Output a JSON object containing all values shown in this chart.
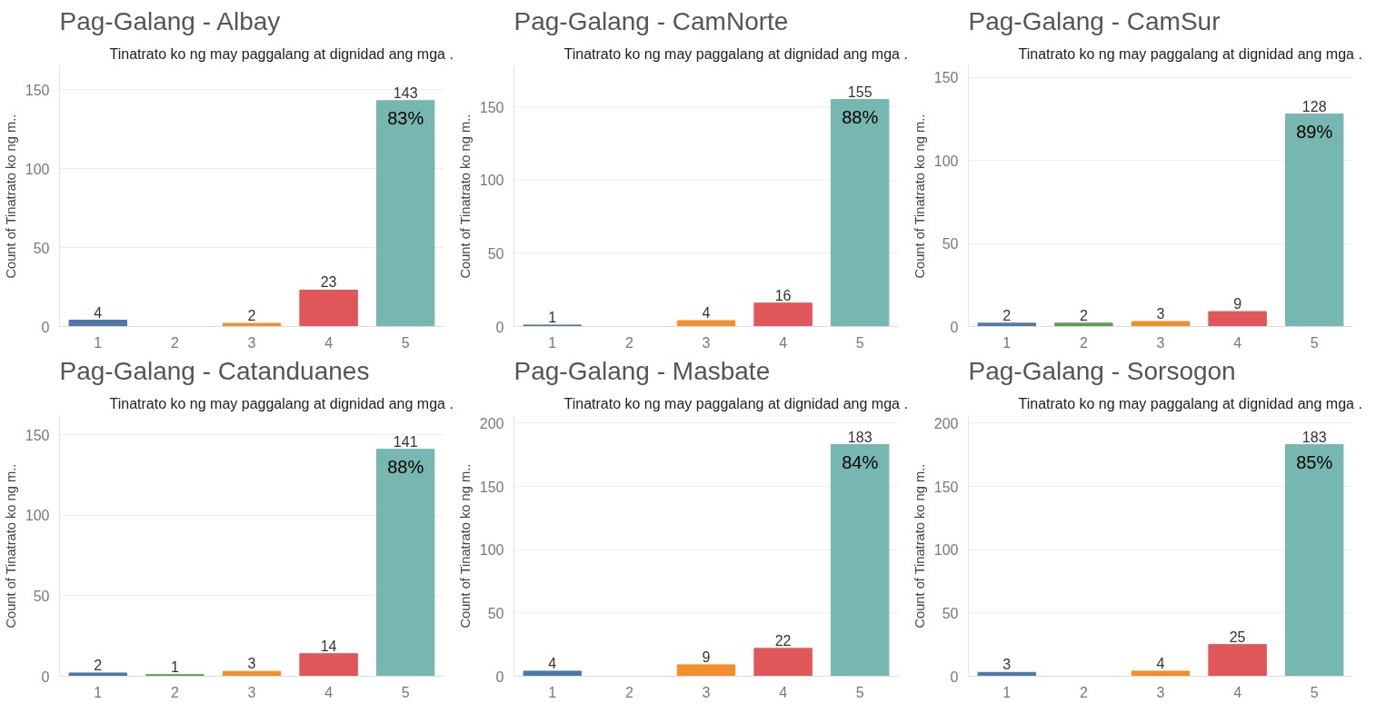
{
  "chart_data": [
    {
      "type": "bar",
      "title": "Pag-Galang - Albay",
      "subtitle": "Tinatrato ko ng may paggalang at dignidad ang mga ..",
      "ylabel": "Count of Tinatrato ko ng m..",
      "categories": [
        "1",
        "2",
        "3",
        "4",
        "5"
      ],
      "values": [
        4,
        null,
        2,
        23,
        143
      ],
      "colors": [
        "#4e79a7",
        "#59a14f",
        "#f28e2b",
        "#e15759",
        "#76b7b2"
      ],
      "ylim": [
        0,
        165
      ],
      "yticks": [
        0,
        50,
        100,
        150
      ],
      "grid": "y",
      "data_labels": true,
      "annotations": [
        {
          "text": "83%",
          "x": "5",
          "y": 143
        }
      ]
    },
    {
      "type": "bar",
      "title": "Pag-Galang - CamNorte",
      "subtitle": "Tinatrato ko ng may paggalang at dignidad ang mga ..",
      "ylabel": "Count of Tinatrato ko ng m..",
      "categories": [
        "1",
        "2",
        "3",
        "4",
        "5"
      ],
      "values": [
        1,
        null,
        4,
        16,
        155
      ],
      "colors": [
        "#4e79a7",
        "#59a14f",
        "#f28e2b",
        "#e15759",
        "#76b7b2"
      ],
      "ylim": [
        0,
        178
      ],
      "yticks": [
        0,
        50,
        100,
        150
      ],
      "grid": "y",
      "data_labels": true,
      "annotations": [
        {
          "text": "88%",
          "x": "5",
          "y": 155
        }
      ]
    },
    {
      "type": "bar",
      "title": "Pag-Galang - CamSur",
      "subtitle": "Tinatrato ko ng may paggalang at dignidad ang mga ..",
      "ylabel": "Count of Tinatrato ko ng m..",
      "categories": [
        "1",
        "2",
        "3",
        "4",
        "5"
      ],
      "values": [
        2,
        2,
        3,
        9,
        128
      ],
      "colors": [
        "#4e79a7",
        "#59a14f",
        "#f28e2b",
        "#e15759",
        "#76b7b2"
      ],
      "ylim": [
        0,
        157
      ],
      "yticks": [
        0,
        50,
        100,
        150
      ],
      "grid": "y",
      "data_labels": true,
      "annotations": [
        {
          "text": "89%",
          "x": "5",
          "y": 128
        }
      ]
    },
    {
      "type": "bar",
      "title": "Pag-Galang - Catanduanes",
      "subtitle": "Tinatrato ko ng may paggalang at dignidad ang mga ..",
      "ylabel": "Count of Tinatrato ko ng m..",
      "categories": [
        "1",
        "2",
        "3",
        "4",
        "5"
      ],
      "values": [
        2,
        1,
        3,
        14,
        141
      ],
      "colors": [
        "#4e79a7",
        "#59a14f",
        "#f28e2b",
        "#e15759",
        "#76b7b2"
      ],
      "ylim": [
        0,
        162
      ],
      "yticks": [
        0,
        50,
        100,
        150
      ],
      "grid": "y",
      "data_labels": true,
      "annotations": [
        {
          "text": "88%",
          "x": "5",
          "y": 141
        }
      ]
    },
    {
      "type": "bar",
      "title": "Pag-Galang - Masbate",
      "subtitle": "Tinatrato ko ng may paggalang at dignidad ang mga ..",
      "ylabel": "Count of Tinatrato ko ng m..",
      "categories": [
        "1",
        "2",
        "3",
        "4",
        "5"
      ],
      "values": [
        4,
        null,
        9,
        22,
        183
      ],
      "colors": [
        "#4e79a7",
        "#59a14f",
        "#f28e2b",
        "#e15759",
        "#76b7b2"
      ],
      "ylim": [
        0,
        206
      ],
      "yticks": [
        0,
        50,
        100,
        150,
        200
      ],
      "grid": "y",
      "data_labels": true,
      "annotations": [
        {
          "text": "84%",
          "x": "5",
          "y": 183
        }
      ]
    },
    {
      "type": "bar",
      "title": "Pag-Galang - Sorsogon",
      "subtitle": "Tinatrato ko ng may paggalang at dignidad ang mga ..",
      "ylabel": "Count of Tinatrato ko ng m..",
      "categories": [
        "1",
        "2",
        "3",
        "4",
        "5"
      ],
      "values": [
        3,
        null,
        4,
        25,
        183
      ],
      "colors": [
        "#4e79a7",
        "#59a14f",
        "#f28e2b",
        "#e15759",
        "#76b7b2"
      ],
      "ylim": [
        0,
        206
      ],
      "yticks": [
        0,
        50,
        100,
        150,
        200
      ],
      "grid": "y",
      "data_labels": true,
      "annotations": [
        {
          "text": "85%",
          "x": "5",
          "y": 183
        }
      ]
    }
  ]
}
